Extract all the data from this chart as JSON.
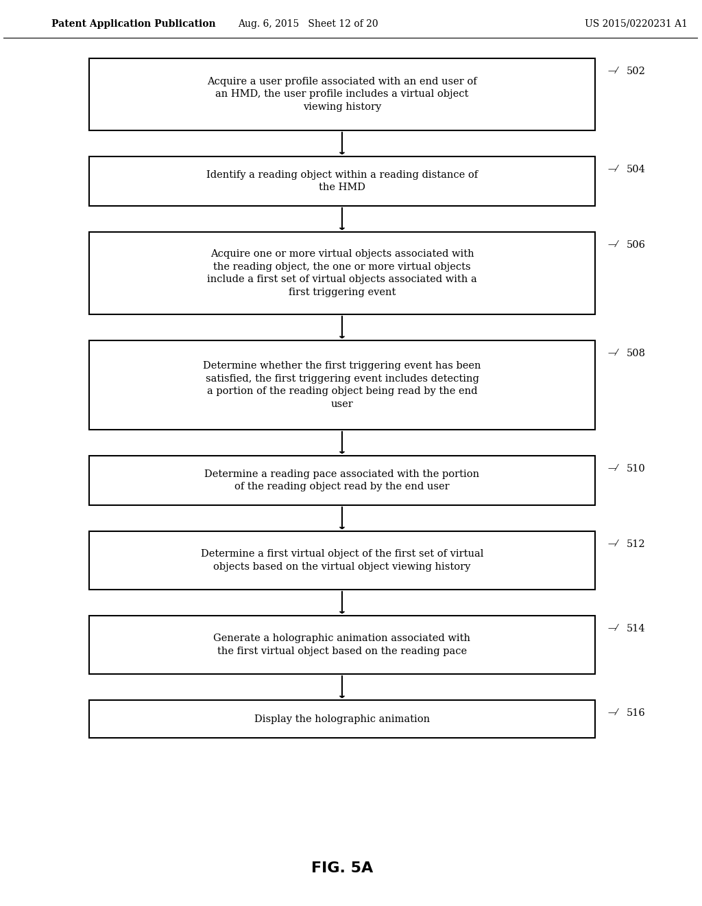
{
  "background_color": "#ffffff",
  "header_left": "Patent Application Publication",
  "header_mid": "Aug. 6, 2015   Sheet 12 of 20",
  "header_right": "US 2015/0220231 A1",
  "footer_label": "FIG. 5A",
  "boxes": [
    {
      "id": "502",
      "label": "Acquire a user profile associated with an end user of\nan HMD, the user profile includes a virtual object\nviewing history",
      "ref": "502"
    },
    {
      "id": "504",
      "label": "Identify a reading object within a reading distance of\nthe HMD",
      "ref": "504"
    },
    {
      "id": "506",
      "label": "Acquire one or more virtual objects associated with\nthe reading object, the one or more virtual objects\ninclude a first set of virtual objects associated with a\nfirst triggering event",
      "ref": "506"
    },
    {
      "id": "508",
      "label": "Determine whether the first triggering event has been\nsatisfied, the first triggering event includes detecting\na portion of the reading object being read by the end\nuser",
      "ref": "508"
    },
    {
      "id": "510",
      "label": "Determine a reading pace associated with the portion\nof the reading object read by the end user",
      "ref": "510"
    },
    {
      "id": "512",
      "label": "Determine a first virtual object of the first set of virtual\nobjects based on the virtual object viewing history",
      "ref": "512"
    },
    {
      "id": "514",
      "label": "Generate a holographic animation associated with\nthe first virtual object based on the reading pace",
      "ref": "514"
    },
    {
      "id": "516",
      "label": "Display the holographic animation",
      "ref": "516"
    }
  ],
  "box_color": "#ffffff",
  "box_edge_color": "#000000",
  "arrow_color": "#000000",
  "text_color": "#000000",
  "font_size": 10.5,
  "header_font_size": 10,
  "footer_font_size": 16
}
